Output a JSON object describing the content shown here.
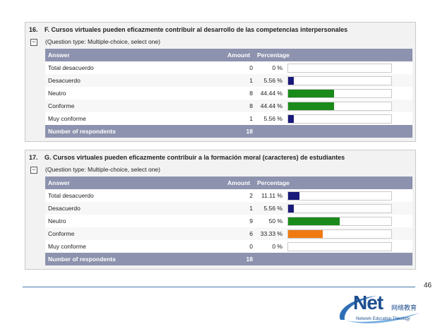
{
  "questions": [
    {
      "number": "16.",
      "title": "F. Cursos virtuales pueden eficazmente contribuir al desarrollo de las competencias interpersonales",
      "type_note": "(Question type: Multiple-choice, select one)",
      "headers": {
        "answer": "Answer",
        "amount": "Amount",
        "percentage": "Percentage"
      },
      "rows": [
        {
          "label": "Total desacuerdo",
          "amount": "0",
          "percent": "0 %",
          "fraction": 0.0,
          "color": "#1a1a7a"
        },
        {
          "label": "Desacuerdo",
          "amount": "1",
          "percent": "5.56 %",
          "fraction": 0.0556,
          "color": "#1a1a7a"
        },
        {
          "label": "Neutro",
          "amount": "8",
          "percent": "44.44 %",
          "fraction": 0.4444,
          "color": "#1a8a1a"
        },
        {
          "label": "Conforme",
          "amount": "8",
          "percent": "44.44 %",
          "fraction": 0.4444,
          "color": "#1a8a1a"
        },
        {
          "label": "Muy conforme",
          "amount": "1",
          "percent": "5.56 %",
          "fraction": 0.0556,
          "color": "#1a1a7a"
        }
      ],
      "footer": {
        "label": "Number of respondents",
        "value": "18"
      }
    },
    {
      "number": "17.",
      "title": "G. Cursos virtuales pueden eficazmente contribuir a la formación moral (caracteres) de estudiantes",
      "type_note": "(Question type: Multiple-choice, select one)",
      "headers": {
        "answer": "Answer",
        "amount": "Amount",
        "percentage": "Percentage"
      },
      "rows": [
        {
          "label": "Total desacuerdo",
          "amount": "2",
          "percent": "11.11 %",
          "fraction": 0.1111,
          "color": "#1a1a7a"
        },
        {
          "label": "Desacuerdo",
          "amount": "1",
          "percent": "5.56 %",
          "fraction": 0.0556,
          "color": "#1a1a7a"
        },
        {
          "label": "Neutro",
          "amount": "9",
          "percent": "50 %",
          "fraction": 0.5,
          "color": "#1a8a1a"
        },
        {
          "label": "Conforme",
          "amount": "6",
          "percent": "33.33 %",
          "fraction": 0.3333,
          "color": "#f07a10"
        },
        {
          "label": "Muy conforme",
          "amount": "0",
          "percent": "0 %",
          "fraction": 0.0,
          "color": "#1a1a7a"
        }
      ],
      "footer": {
        "label": "Number of respondents",
        "value": "18"
      }
    }
  ],
  "page_number": "46",
  "logo": {
    "main": "Net",
    "cjk": "网络教育",
    "sub": "Network Education Theology"
  }
}
